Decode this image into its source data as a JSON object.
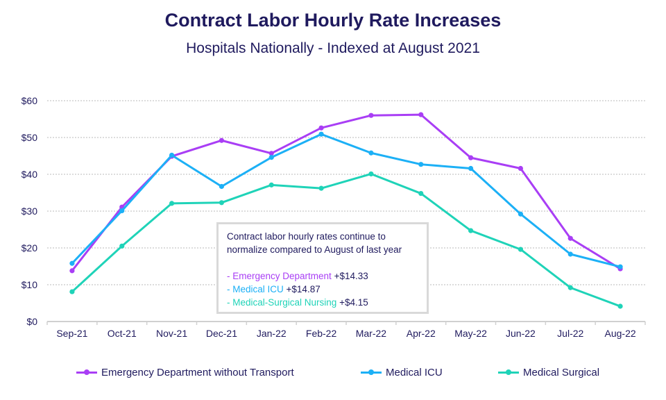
{
  "chart_data": {
    "type": "line",
    "title": "Contract Labor Hourly Rate Increases",
    "subtitle": "Hospitals Nationally - Indexed at August 2021",
    "xlabel": "",
    "ylabel": "",
    "categories": [
      "Sep-21",
      "Oct-21",
      "Nov-21",
      "Dec-21",
      "Jan-22",
      "Feb-22",
      "Mar-22",
      "Apr-22",
      "May-22",
      "Jun-22",
      "Jul-22",
      "Aug-22"
    ],
    "ylim": [
      0,
      60
    ],
    "yticks": [
      "$0",
      "$10",
      "$20",
      "$30",
      "$40",
      "$50",
      "$60"
    ],
    "grid": true,
    "legend_position": "bottom",
    "series": [
      {
        "name": "Emergency Department without Transport",
        "color": "#a93ef5",
        "values": [
          13.8,
          31.1,
          44.9,
          49.2,
          45.7,
          52.6,
          56.0,
          56.2,
          44.5,
          41.6,
          22.6,
          14.33
        ]
      },
      {
        "name": "Medical ICU",
        "color": "#1cb0f6",
        "values": [
          15.8,
          30.1,
          45.2,
          36.7,
          44.6,
          50.9,
          45.8,
          42.7,
          41.6,
          29.2,
          18.3,
          14.87
        ]
      },
      {
        "name": "Medical Surgical",
        "color": "#1fd3b8",
        "values": [
          8.1,
          20.5,
          32.1,
          32.3,
          37.1,
          36.2,
          40.1,
          34.8,
          24.7,
          19.6,
          9.2,
          4.15
        ]
      }
    ],
    "annotation": {
      "line1": "Contract labor hourly rates continue to",
      "line2": "normalize compared to August of last year",
      "items": [
        {
          "label": "- Emergency Department",
          "value": "+$14.33"
        },
        {
          "label": "- Medical ICU",
          "value": "+$14.87"
        },
        {
          "label": "- Medical-Surgical Nursing",
          "value": "+$4.15"
        }
      ]
    }
  }
}
